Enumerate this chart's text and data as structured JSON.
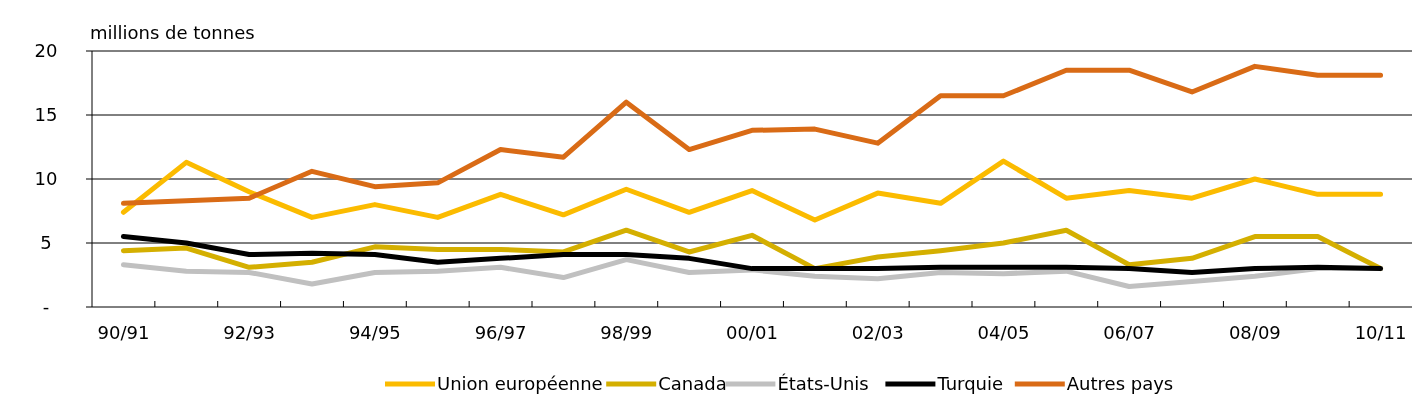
{
  "chart_data": {
    "type": "line",
    "ylabel": "millions de tonnes",
    "categories": [
      "90/91",
      null,
      "92/93",
      null,
      "94/95",
      null,
      "96/97",
      null,
      "98/99",
      null,
      "00/01",
      null,
      "02/03",
      null,
      "04/05",
      null,
      "06/07",
      null,
      "08/09",
      null,
      "10/11"
    ],
    "series": [
      {
        "name": "Union européenne",
        "color": "#fbbb00",
        "values": [
          7.4,
          11.3,
          9.0,
          7.0,
          8.0,
          7.0,
          8.8,
          7.2,
          9.2,
          7.4,
          9.1,
          6.8,
          8.9,
          8.1,
          11.4,
          8.5,
          9.1,
          8.5,
          10.0,
          8.8,
          8.8
        ]
      },
      {
        "name": "Canada",
        "color": "#d4af00",
        "values": [
          4.4,
          4.6,
          3.1,
          3.5,
          4.7,
          4.5,
          4.5,
          4.3,
          6.0,
          4.3,
          5.6,
          3.0,
          3.9,
          4.4,
          5.0,
          6.0,
          3.3,
          3.8,
          5.5,
          5.5,
          3.0
        ]
      },
      {
        "name": "États-Unis",
        "color": "#c0c0c0",
        "values": [
          3.3,
          2.8,
          2.7,
          1.8,
          2.7,
          2.8,
          3.1,
          2.3,
          3.7,
          2.7,
          2.9,
          2.4,
          2.2,
          2.7,
          2.6,
          2.8,
          1.6,
          2.0,
          2.4,
          3.0,
          3.0
        ]
      },
      {
        "name": "Turquie",
        "color": "#000000",
        "values": [
          5.5,
          5.0,
          4.1,
          4.2,
          4.1,
          3.5,
          3.8,
          4.1,
          4.1,
          3.8,
          3.0,
          3.0,
          3.0,
          3.1,
          3.1,
          3.1,
          3.0,
          2.7,
          3.0,
          3.1,
          3.0
        ]
      },
      {
        "name": "Autres pays",
        "color": "#d96b16",
        "values": [
          8.1,
          8.3,
          8.5,
          10.6,
          9.4,
          9.7,
          12.3,
          11.7,
          16.0,
          12.3,
          13.8,
          13.9,
          12.8,
          16.5,
          16.5,
          18.5,
          18.5,
          16.8,
          18.8,
          18.1,
          18.1
        ]
      }
    ],
    "ylim": [
      0,
      20
    ],
    "yticks": [
      {
        "value": 0,
        "label": "-"
      },
      5,
      10,
      15,
      20
    ],
    "grid": "y",
    "legend": "bottom",
    "marker": "none",
    "line_style": "solid"
  }
}
